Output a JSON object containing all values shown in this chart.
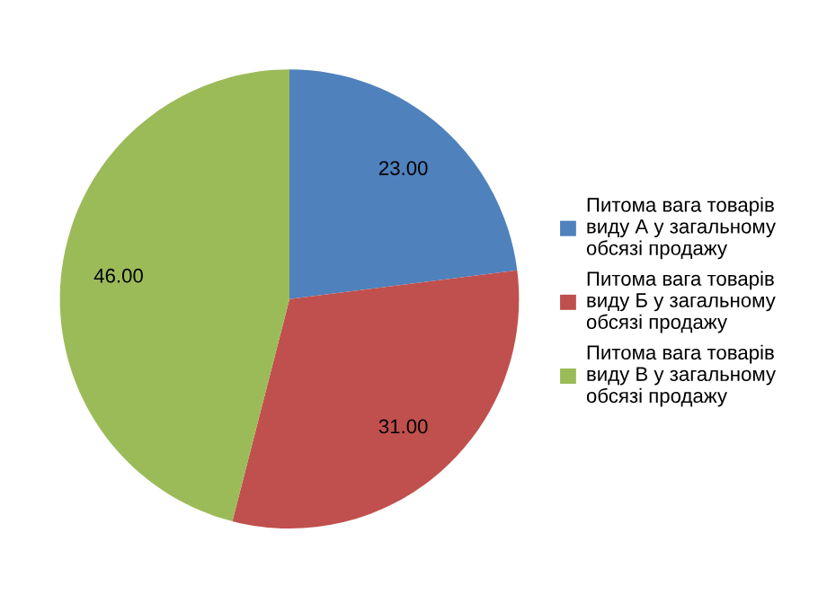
{
  "chart_data": {
    "type": "pie",
    "categories": [
      "Питома вага товарів\nвиду А у загальному\nобсязі продажу",
      "Питома вага товарів\nвиду Б у загальному\nобсязі продажу",
      "Питома вага товарів\nвиду В у загальному\nобсязі продажу"
    ],
    "values": [
      23,
      31,
      46
    ],
    "value_labels": [
      "23.00",
      "31.00",
      "46.00"
    ],
    "colors": [
      "#4f81bd",
      "#c0504d",
      "#9bbb59"
    ],
    "legend": "right"
  }
}
